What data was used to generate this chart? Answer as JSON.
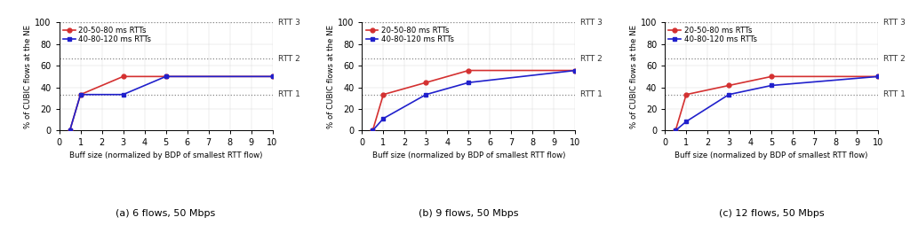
{
  "plots": [
    {
      "title": "(a) 6 flows, 50 Mbps",
      "red_x": [
        0.5,
        1,
        3,
        5,
        10
      ],
      "red_y": [
        0,
        33.3,
        50,
        50,
        50
      ],
      "blue_x": [
        0.5,
        1,
        3,
        5,
        10
      ],
      "blue_y": [
        0,
        33.3,
        33.3,
        50,
        50
      ]
    },
    {
      "title": "(b) 9 flows, 50 Mbps",
      "red_x": [
        0.5,
        1,
        3,
        5,
        10
      ],
      "red_y": [
        0,
        33.3,
        44.4,
        55.6,
        55.6
      ],
      "blue_x": [
        0.5,
        1,
        3,
        5,
        10
      ],
      "blue_y": [
        0,
        11.1,
        33.3,
        44.4,
        55.6
      ]
    },
    {
      "title": "(c) 12 flows, 50 Mbps",
      "red_x": [
        0.5,
        1,
        3,
        5,
        10
      ],
      "red_y": [
        0,
        33.3,
        41.7,
        50,
        50
      ],
      "blue_x": [
        0.5,
        1,
        3,
        5,
        10
      ],
      "blue_y": [
        0,
        8.3,
        33.3,
        41.7,
        50
      ]
    }
  ],
  "red_color": "#d43030",
  "blue_color": "#2020cc",
  "red_label": "20-50-80 ms RTTs",
  "blue_label": "40-80-120 ms RTTs",
  "ylabel": "% of CUBIC flows at the NE",
  "xlabel": "Buff size (normalized by BDP of smallest RTT flow)",
  "hlines": [
    33.33,
    66.67,
    100
  ],
  "hline_labels": [
    "RTT 1",
    "RTT 2",
    "RTT 3"
  ],
  "xticks": [
    0,
    1,
    2,
    3,
    4,
    5,
    6,
    7,
    8,
    9,
    10
  ],
  "yticks": [
    0,
    20,
    40,
    60,
    80,
    100
  ],
  "ylim": [
    0,
    100
  ],
  "xlim": [
    0,
    10
  ],
  "fig_width": 10.24,
  "fig_height": 2.54,
  "dpi": 100
}
